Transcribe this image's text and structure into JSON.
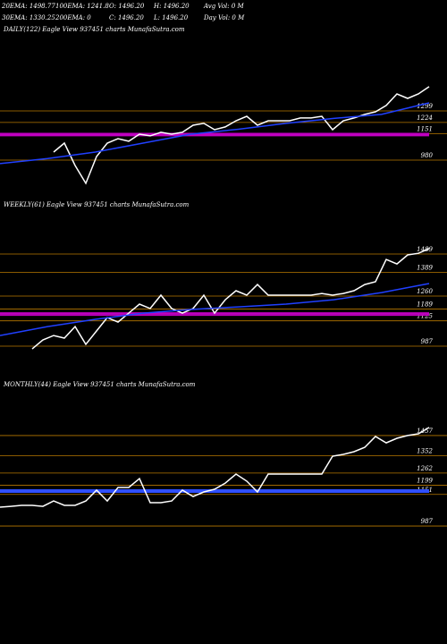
{
  "header": {
    "line1": [
      "20EMA: 1498.77",
      "100EMA: 1241.8",
      "O: 1496.20",
      "H: 1496.20",
      "Avg Vol: 0  M"
    ],
    "line2": [
      "30EMA: 1330.25",
      "200EMA: 0",
      "C: 1496.20",
      "L: 1496.20",
      "Day Vol: 0  M"
    ]
  },
  "chart_data": [
    {
      "type": "line",
      "title": "DAILY(122) Eagle  View  937451 charts MunafaSutra.com",
      "ylim": [
        829,
        1786
      ],
      "yticks": [
        1299,
        1224,
        1151,
        980
      ],
      "level_color": "#b87800",
      "bands": [
        {
          "value": 1151,
          "color": "#c000c0"
        },
        {
          "value": 1140,
          "color": "#c000c0"
        }
      ],
      "series": [
        {
          "color": "#ffffff",
          "values": [
            null,
            null,
            null,
            null,
            null,
            1032,
            1090,
            945,
            829,
            1003,
            1090,
            1119,
            1102,
            1148,
            1137,
            1160,
            1148,
            1160,
            1206,
            1218,
            1177,
            1195,
            1235,
            1264,
            1206,
            1235,
            1235,
            1235,
            1253,
            1253,
            1264,
            1177,
            1235,
            1253,
            1276,
            1293,
            1334,
            1409,
            1380,
            1409,
            1456
          ]
        },
        {
          "color": "#2040ff",
          "values": [
            957,
            990,
            1032,
            1090,
            1148,
            1180,
            1218,
            1250,
            1276,
            1351
          ]
        }
      ]
    },
    {
      "type": "line",
      "title": "WEEKLY(61) Eagle  View  937451 charts MunafaSutra.com",
      "ylim": [
        875,
        1752
      ],
      "yticks": [
        1489,
        1389,
        1260,
        1189,
        1125,
        987
      ],
      "level_color": "#b87800",
      "bands": [
        {
          "value": 1167,
          "color": "#c000c0"
        },
        {
          "value": 1157,
          "color": "#c000c0"
        }
      ],
      "series": [
        {
          "color": "#ffffff",
          "values": [
            null,
            null,
            null,
            972,
            1021,
            1045,
            1031,
            1094,
            997,
            1070,
            1143,
            1118,
            1167,
            1216,
            1192,
            1265,
            1192,
            1167,
            1192,
            1265,
            1167,
            1240,
            1289,
            1265,
            1323,
            1265,
            1265,
            1265,
            1265,
            1265,
            1274,
            1265,
            1274,
            1289,
            1323,
            1338,
            1459,
            1435,
            1484,
            1493,
            1518
          ]
        },
        {
          "color": "#2040ff",
          "values": [
            1045,
            1094,
            1133,
            1167,
            1187,
            1201,
            1216,
            1240,
            1279,
            1328
          ]
        }
      ]
    },
    {
      "type": "line",
      "title": "MONTHLY(44) Eagle  View  937451 charts MunafaSutra.com",
      "ylim": [
        420,
        1745
      ],
      "yticks": [
        1457,
        1352,
        1262,
        1199,
        1151,
        987
      ],
      "level_color": "#b87800",
      "bands": [
        {
          "value": 1173,
          "color": "#3050ff"
        },
        {
          "value": 1164,
          "color": "#3050ff"
        }
      ],
      "series": [
        {
          "color": "#ffffff",
          "values": [
            1085,
            1089,
            1094,
            1094,
            1089,
            1117,
            1094,
            1094,
            1117,
            1173,
            1117,
            1187,
            1187,
            1233,
            1108,
            1108,
            1117,
            1173,
            1140,
            1164,
            1178,
            1210,
            1257,
            1220,
            1164,
            1257,
            1257,
            1257,
            1257,
            1257,
            1257,
            1350,
            1359,
            1373,
            1396,
            1452,
            1419,
            1443,
            1457,
            1466,
            1499
          ]
        }
      ]
    }
  ]
}
